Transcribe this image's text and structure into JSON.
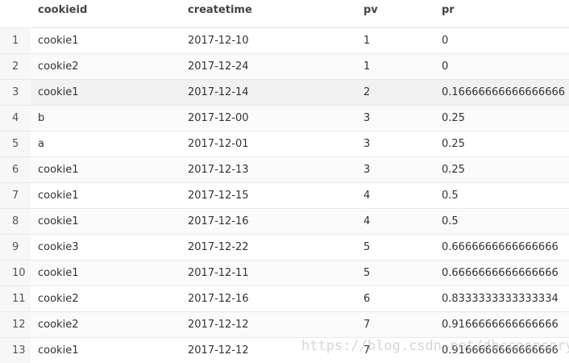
{
  "table": {
    "columns": [
      "",
      "cookieid",
      "createtime",
      "pv",
      "pr"
    ],
    "rows": [
      [
        "1",
        "cookie1",
        "2017-12-10",
        "1",
        "0"
      ],
      [
        "2",
        "cookie2",
        "2017-12-24",
        "1",
        "0"
      ],
      [
        "3",
        "cookie1",
        "2017-12-14",
        "2",
        "0.16666666666666666"
      ],
      [
        "4",
        "b",
        "2017-12-00",
        "3",
        "0.25"
      ],
      [
        "5",
        "a",
        "2017-12-01",
        "3",
        "0.25"
      ],
      [
        "6",
        "cookie1",
        "2017-12-13",
        "3",
        "0.25"
      ],
      [
        "7",
        "cookie1",
        "2017-12-15",
        "4",
        "0.5"
      ],
      [
        "8",
        "cookie1",
        "2017-12-16",
        "4",
        "0.5"
      ],
      [
        "9",
        "cookie3",
        "2017-12-22",
        "5",
        "0.6666666666666666"
      ],
      [
        "10",
        "cookie1",
        "2017-12-11",
        "5",
        "0.6666666666666666"
      ],
      [
        "11",
        "cookie2",
        "2017-12-16",
        "6",
        "0.8333333333333334"
      ],
      [
        "12",
        "cookie2",
        "2017-12-12",
        "7",
        "0.9166666666666666"
      ],
      [
        "13",
        "cookie1",
        "2017-12-12",
        "7",
        "0.9166666666666666"
      ]
    ],
    "selected_row": 2
  },
  "watermark": "https://blog.csdn.net/dbccoopsory"
}
